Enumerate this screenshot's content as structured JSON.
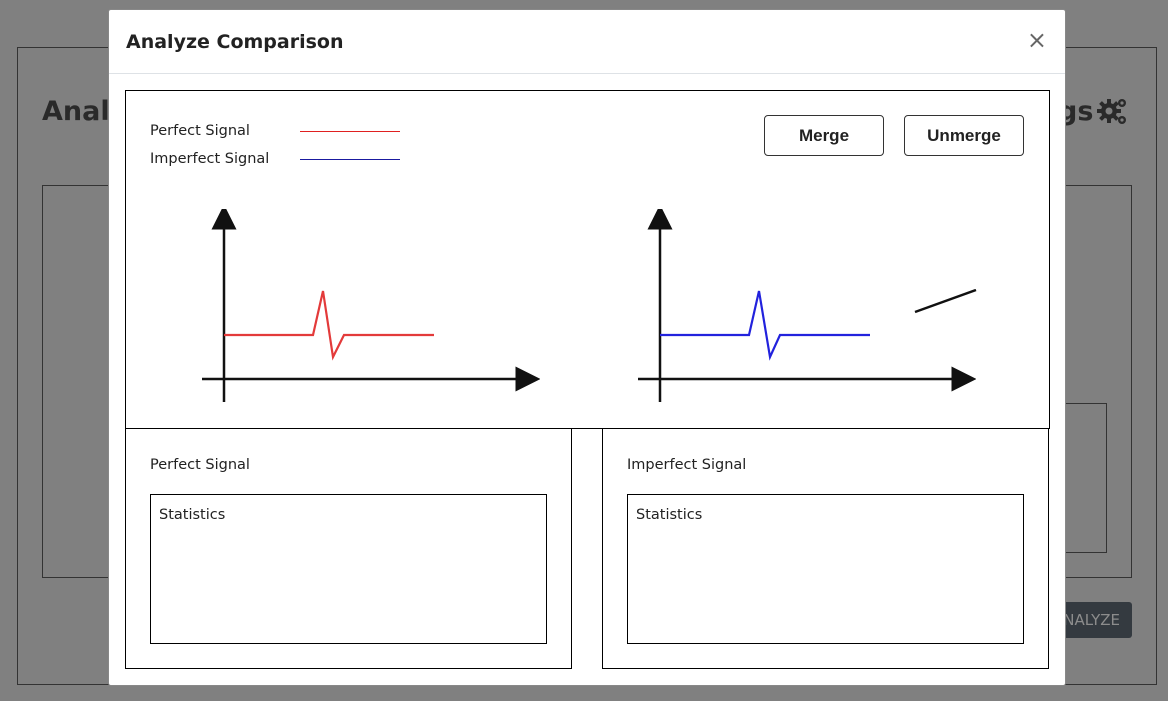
{
  "background": {
    "title_left": "Analy",
    "title_right": "gs",
    "settings_icon": "gears-icon",
    "analyze_label": "NALYZE"
  },
  "modal": {
    "title": "Analyze Comparison",
    "close_label": "×",
    "legend": [
      {
        "label": "Perfect Signal",
        "color": "#e02020"
      },
      {
        "label": "Imperfect Signal",
        "color": "#1a1aa0"
      }
    ],
    "buttons": {
      "merge": "Merge",
      "unmerge": "Unmerge"
    },
    "plots": [
      {
        "name": "perfect-signal-plot",
        "color": "#e33a3a"
      },
      {
        "name": "imperfect-signal-plot",
        "color": "#2222dd"
      }
    ],
    "stats": [
      {
        "title": "Perfect Signal",
        "label": "Statistics"
      },
      {
        "title": "Imperfect Signal",
        "label": "Statistics"
      }
    ]
  }
}
